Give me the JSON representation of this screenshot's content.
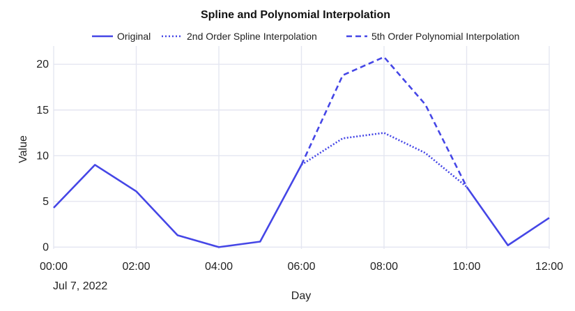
{
  "chart_data": {
    "type": "line",
    "title": "Spline and Polynomial Interpolation",
    "xlabel": "Day",
    "ylabel": "Value",
    "date_label": "Jul 7, 2022",
    "x_tick_labels": [
      "00:00",
      "02:00",
      "04:00",
      "06:00",
      "08:00",
      "10:00",
      "12:00"
    ],
    "y_tick_labels": [
      "0",
      "5",
      "10",
      "15",
      "20"
    ],
    "y_ticks": [
      0,
      5,
      10,
      15,
      20
    ],
    "x_ticks": [
      "00:00",
      "02:00",
      "04:00",
      "06:00",
      "08:00",
      "10:00",
      "12:00"
    ],
    "xlim": [
      "00:00",
      "12:00"
    ],
    "ylim": [
      -0.2,
      22
    ],
    "grid": true,
    "legend_position": "top",
    "series": [
      {
        "name": "Original",
        "style": "solid",
        "color": "#4546e6",
        "x": [
          "00:00",
          "01:00",
          "02:00",
          "03:00",
          "04:00",
          "05:00",
          "06:00",
          "10:00",
          "11:00",
          "12:00"
        ],
        "y": [
          4.3,
          9.0,
          6.1,
          1.3,
          0.0,
          0.6,
          9.0,
          6.6,
          0.2,
          3.2
        ],
        "gaps_after": [
          6
        ]
      },
      {
        "name": "2nd Order Spline Interpolation",
        "style": "dotted",
        "color": "#4546e6",
        "x": [
          "06:00",
          "07:00",
          "08:00",
          "09:00",
          "10:00"
        ],
        "y": [
          9.0,
          11.9,
          12.5,
          10.3,
          6.6
        ]
      },
      {
        "name": "5th Order Polynomial Interpolation",
        "style": "dashed",
        "color": "#4546e6",
        "x": [
          "06:00",
          "07:00",
          "08:00",
          "09:00",
          "10:00"
        ],
        "y": [
          9.0,
          18.8,
          20.8,
          15.6,
          6.6
        ]
      }
    ]
  }
}
